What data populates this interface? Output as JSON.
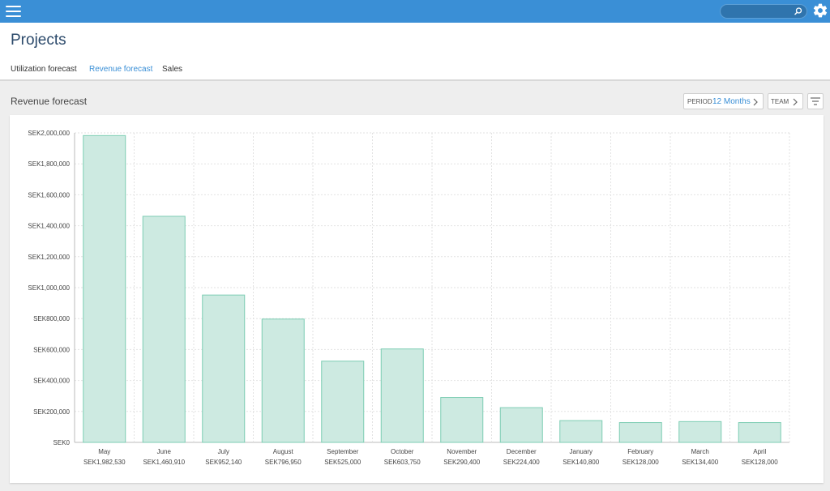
{
  "app": {
    "page_title": "Projects",
    "tabs": [
      {
        "label": "Utilization forecast",
        "active": false
      },
      {
        "label": "Revenue forecast",
        "active": true
      },
      {
        "label": "Sales",
        "active": false
      }
    ]
  },
  "search": {
    "value": "",
    "icon": "search-icon"
  },
  "section": {
    "title": "Revenue forecast",
    "period_label": "PERIOD",
    "period_value": "12 Months",
    "team_label": "TEAM"
  },
  "colors": {
    "topbar": "#3a8fd6",
    "accent": "#3a8fd6",
    "bar_fill": "#cdeae1",
    "bar_stroke": "#7dcdb3"
  },
  "chart_data": {
    "type": "bar",
    "categories": [
      "May",
      "June",
      "July",
      "August",
      "September",
      "October",
      "November",
      "December",
      "January",
      "February",
      "March",
      "April"
    ],
    "values": [
      1982530,
      1460910,
      952140,
      796950,
      525000,
      603750,
      290400,
      224400,
      140800,
      128000,
      134400,
      128000
    ],
    "value_labels": [
      "SEK1,982,530",
      "SEK1,460,910",
      "SEK952,140",
      "SEK796,950",
      "SEK525,000",
      "SEK603,750",
      "SEK290,400",
      "SEK224,400",
      "SEK140,800",
      "SEK128,000",
      "SEK134,400",
      "SEK128,000"
    ],
    "yticks": [
      0,
      200000,
      400000,
      600000,
      800000,
      1000000,
      1200000,
      1400000,
      1600000,
      1800000,
      2000000
    ],
    "ytick_labels": [
      "SEK0",
      "SEK200,000",
      "SEK400,000",
      "SEK600,000",
      "SEK800,000",
      "SEK1,000,000",
      "SEK1,200,000",
      "SEK1,400,000",
      "SEK1,600,000",
      "SEK1,800,000",
      "SEK2,000,000"
    ],
    "ylim": [
      0,
      2000000
    ],
    "grid": true,
    "legend": "none"
  }
}
